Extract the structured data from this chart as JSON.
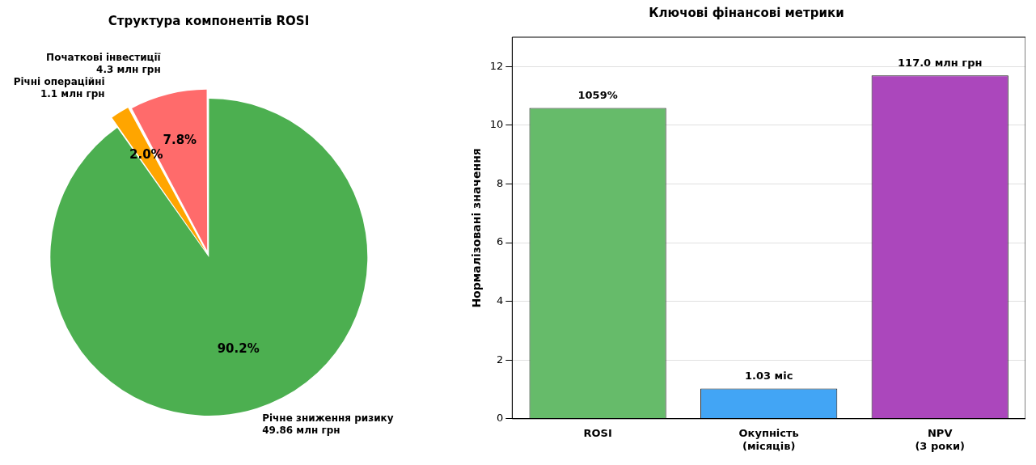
{
  "chart_data": [
    {
      "type": "pie",
      "title": "Структура компонентів ROSI",
      "categories": [
        "Річне зниження ризику\n49.86 млн грн",
        "Річні операційні\n1.1 млн грн",
        "Початкові інвестиції\n4.3 млн грн"
      ],
      "values": [
        90.2,
        2.0,
        7.8
      ],
      "colors": [
        "#4caf50",
        "#ffa500",
        "#ff6b6b"
      ],
      "value_labels": [
        "90.2%",
        "2.0%",
        "7.8%"
      ],
      "legend": false
    },
    {
      "type": "bar",
      "title": "Ключові фінансові метрики",
      "ylabel": "Нормалізовані значення",
      "categories": [
        "ROSI",
        "Окупність\n(місяців)",
        "NPV\n(3 роки)"
      ],
      "values": [
        10.59,
        1.03,
        11.7
      ],
      "colors": [
        "#66bb6a",
        "#42a5f5",
        "#ab47bc"
      ],
      "annotations": [
        {
          "text": "1059%",
          "x": "ROSI",
          "y": 10.59
        },
        {
          "text": "1.03 міс",
          "x": "Окупність\n(місяців)",
          "y": 1.03
        },
        {
          "text": "117.0 млн грн",
          "x": "NPV\n(3 роки)",
          "y": 11.7
        }
      ],
      "ylim": [
        0,
        13
      ],
      "yticks": [
        0,
        2,
        4,
        6,
        8,
        10,
        12
      ],
      "grid": "y",
      "legend": false
    }
  ]
}
